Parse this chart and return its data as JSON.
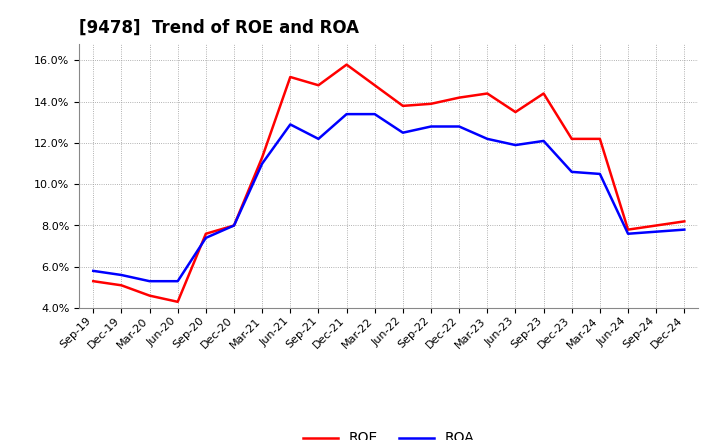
{
  "title": "[9478]  Trend of ROE and ROA",
  "ylim": [
    0.04,
    0.168
  ],
  "yticks": [
    0.04,
    0.06,
    0.08,
    0.1,
    0.12,
    0.14,
    0.16
  ],
  "background_color": "#ffffff",
  "grid_color": "#999999",
  "labels": [
    "Sep-19",
    "Dec-19",
    "Mar-20",
    "Jun-20",
    "Sep-20",
    "Dec-20",
    "Mar-21",
    "Jun-21",
    "Sep-21",
    "Dec-21",
    "Mar-22",
    "Jun-22",
    "Sep-22",
    "Dec-22",
    "Mar-23",
    "Jun-23",
    "Sep-23",
    "Dec-23",
    "Mar-24",
    "Jun-24",
    "Sep-24",
    "Dec-24"
  ],
  "roe": [
    0.053,
    0.051,
    0.046,
    0.043,
    0.076,
    0.08,
    0.113,
    0.152,
    0.148,
    0.158,
    0.148,
    0.138,
    0.139,
    0.142,
    0.144,
    0.135,
    0.144,
    0.122,
    0.122,
    0.078,
    0.08,
    0.082
  ],
  "roa": [
    0.058,
    0.056,
    0.053,
    0.053,
    0.074,
    0.08,
    0.11,
    0.129,
    0.122,
    0.134,
    0.134,
    0.125,
    0.128,
    0.128,
    0.122,
    0.119,
    0.121,
    0.106,
    0.105,
    0.076,
    0.077,
    0.078
  ],
  "roe_color": "#ff0000",
  "roa_color": "#0000ff",
  "line_width": 1.8,
  "title_fontsize": 12,
  "tick_fontsize": 8,
  "legend_fontsize": 10
}
